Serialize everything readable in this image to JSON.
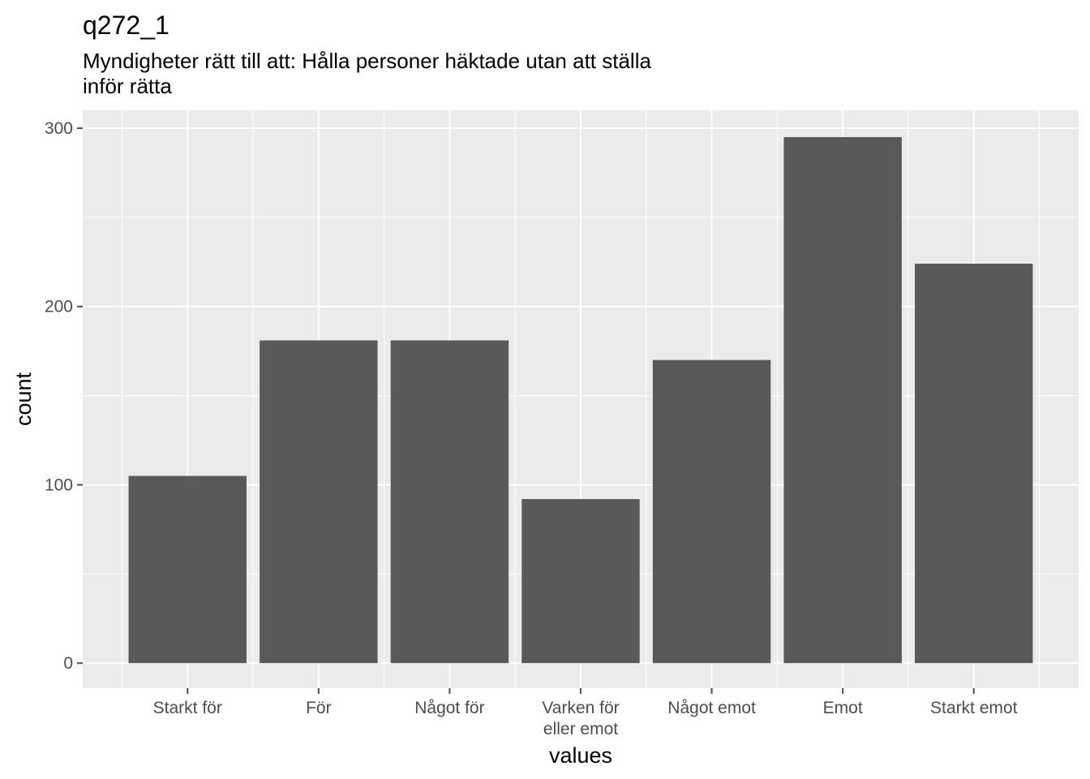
{
  "chart_data": {
    "type": "bar",
    "title": "q272_1",
    "subtitle": [
      "Myndigheter rätt till att: Hålla personer häktade utan att ställa",
      "inför rätta"
    ],
    "xlabel": "values",
    "ylabel": "count",
    "categories": [
      [
        "Starkt för"
      ],
      [
        "För"
      ],
      [
        "Något för"
      ],
      [
        "Varken för",
        "eller emot"
      ],
      [
        "Något emot"
      ],
      [
        "Emot"
      ],
      [
        "Starkt emot"
      ]
    ],
    "values": [
      105,
      181,
      181,
      92,
      170,
      295,
      224
    ],
    "ylim": [
      -14,
      310
    ],
    "yticks": [
      0,
      100,
      200,
      300
    ],
    "grid": true,
    "legend": "none",
    "colors": {
      "panel": "#ebebeb",
      "grid": "#ffffff",
      "bar": "#595959",
      "tick": "#4d4d4d"
    }
  }
}
